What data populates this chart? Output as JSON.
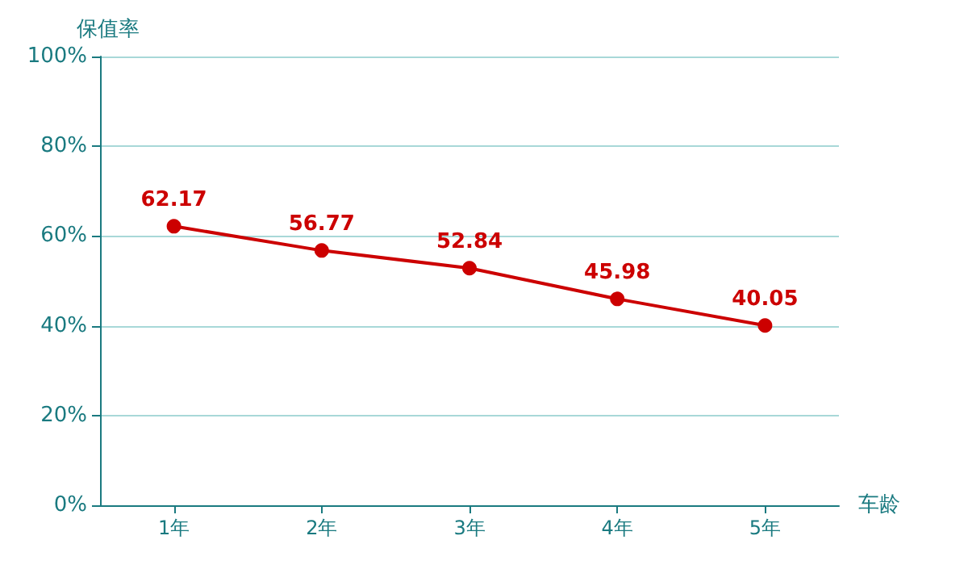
{
  "chart_data": {
    "type": "line",
    "xlabel": "车龄",
    "ylabel": "保值率",
    "categories": [
      "1年",
      "2年",
      "3年",
      "4年",
      "5年"
    ],
    "series": [
      {
        "color": "#cc0000",
        "values": [
          62.17,
          56.77,
          52.84,
          45.98,
          40.05
        ]
      }
    ],
    "ylim": [
      0,
      100
    ],
    "yticks": [
      {
        "value": 0,
        "label": "0%"
      },
      {
        "value": 20,
        "label": "20%"
      },
      {
        "value": 40,
        "label": "40%"
      },
      {
        "value": 60,
        "label": "60%"
      },
      {
        "value": 80,
        "label": "80%"
      },
      {
        "value": 100,
        "label": "100%"
      }
    ],
    "grid": "y",
    "marker": "circle",
    "line_style": "solid",
    "data_labels": true
  }
}
